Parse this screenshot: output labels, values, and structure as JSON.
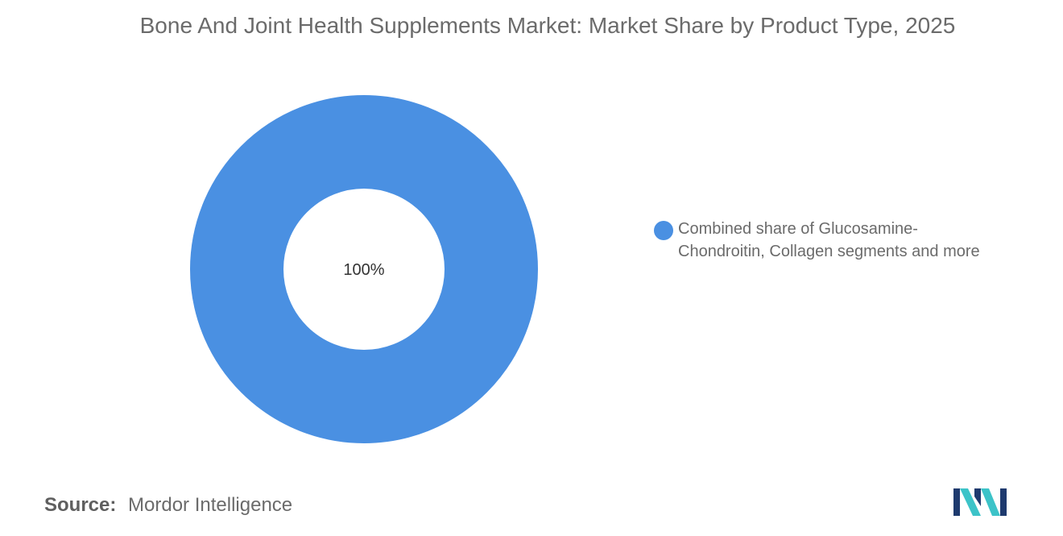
{
  "chart_data": {
    "type": "pie",
    "style": "donut",
    "title": "Bone And Joint Health Supplements Market: Market Share by Product Type, 2025",
    "slices": [
      {
        "label": "Combined share of Glucosamine-Chondroitin, Collagen segments and more",
        "value": 100,
        "display": "100%",
        "color": "#4a90e2"
      }
    ],
    "legend_position": "right"
  },
  "source": {
    "label": "Source:",
    "value": "Mordor Intelligence"
  },
  "logo": {
    "icon": "mordor-intelligence-logo",
    "colors": [
      "#1e3a6e",
      "#3cc3c8"
    ]
  }
}
